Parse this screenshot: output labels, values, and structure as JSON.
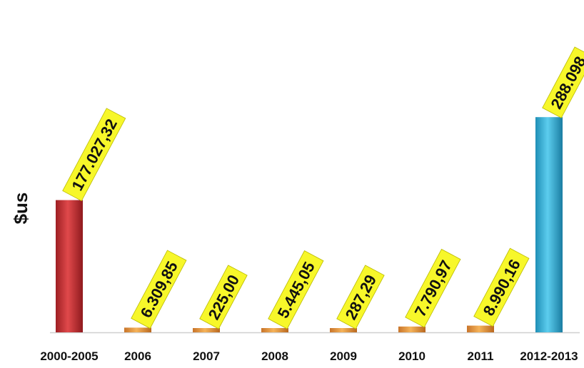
{
  "chart_data": {
    "type": "bar",
    "title": "",
    "xlabel": "",
    "ylabel": "$us",
    "categories": [
      "2000-2005",
      "2006",
      "2007",
      "2008",
      "2009",
      "2010",
      "2011",
      "2012-2013"
    ],
    "values": [
      177027.32,
      6309.85,
      225.0,
      5445.05,
      287.29,
      7790.97,
      8990.16,
      288098
    ],
    "data_labels": [
      "177.027,32",
      "6.309,85",
      "225,00",
      "5.445,05",
      "287,29",
      "7.790,97",
      "8.990,16",
      "288.098"
    ],
    "ylim": [
      0,
      400000
    ],
    "grid": false,
    "legend": "none",
    "colors": {
      "first_bar": "#c8383a",
      "middle_bars": "#e8953a",
      "last_bar": "#3aaed4",
      "label_box": "#f7f72a"
    }
  }
}
